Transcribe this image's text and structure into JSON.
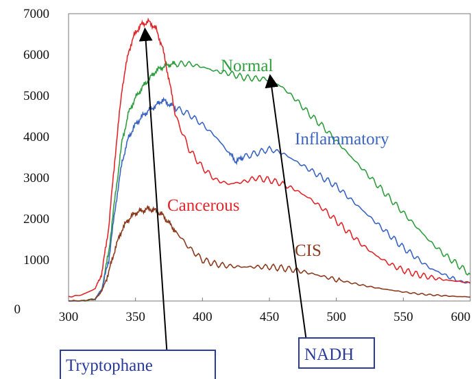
{
  "chart_data": {
    "type": "line",
    "xlim": [
      300,
      600
    ],
    "ylim": [
      0,
      7000
    ],
    "x_ticks": [
      "300",
      "350",
      "400",
      "450",
      "500",
      "550",
      "600"
    ],
    "y_ticks": [
      "0",
      "1000",
      "2000",
      "3000",
      "4000",
      "5000",
      "6000",
      "7000"
    ],
    "grid": false,
    "legend": "inline labels",
    "series": [
      {
        "name": "Normal",
        "color": "#2e9e3e",
        "x": [
          300,
          310,
          320,
          325,
          330,
          335,
          340,
          345,
          350,
          355,
          360,
          365,
          370,
          375,
          380,
          390,
          400,
          410,
          420,
          430,
          440,
          450,
          460,
          470,
          480,
          490,
          500,
          510,
          520,
          530,
          540,
          550,
          560,
          570,
          580,
          590,
          600
        ],
        "y": [
          0,
          0,
          50,
          300,
          1200,
          2600,
          3900,
          4600,
          4950,
          5200,
          5400,
          5600,
          5700,
          5760,
          5780,
          5780,
          5700,
          5600,
          5550,
          5450,
          5420,
          5400,
          5200,
          4900,
          4550,
          4250,
          3900,
          3550,
          3200,
          2850,
          2500,
          2150,
          1800,
          1450,
          1150,
          900,
          650
        ]
      },
      {
        "name": "Inflammatory",
        "color": "#3a64c2",
        "x": [
          300,
          310,
          320,
          325,
          330,
          335,
          340,
          345,
          350,
          355,
          360,
          365,
          370,
          375,
          380,
          390,
          400,
          410,
          420,
          425,
          430,
          440,
          450,
          460,
          470,
          480,
          490,
          500,
          510,
          520,
          530,
          540,
          550,
          560,
          570,
          580,
          590,
          600
        ],
        "y": [
          0,
          0,
          50,
          300,
          1000,
          2300,
          3400,
          4000,
          4300,
          4500,
          4650,
          4750,
          4900,
          4800,
          4700,
          4550,
          4300,
          4000,
          3600,
          3400,
          3500,
          3600,
          3700,
          3600,
          3400,
          3200,
          3000,
          2800,
          2500,
          2200,
          1900,
          1600,
          1300,
          1050,
          800,
          650,
          500,
          430
        ]
      },
      {
        "name": "Cancerous",
        "color": "#e0262a",
        "x": [
          300,
          310,
          320,
          325,
          330,
          335,
          340,
          345,
          350,
          355,
          360,
          365,
          370,
          375,
          380,
          390,
          400,
          410,
          420,
          430,
          440,
          450,
          460,
          470,
          480,
          490,
          500,
          510,
          520,
          530,
          540,
          550,
          560,
          570,
          580,
          590,
          600
        ],
        "y": [
          100,
          150,
          300,
          700,
          1800,
          3600,
          5200,
          6100,
          6550,
          6750,
          6800,
          6650,
          6200,
          5400,
          4500,
          3700,
          3250,
          2950,
          2850,
          2900,
          3000,
          2950,
          2850,
          2700,
          2500,
          2250,
          1950,
          1650,
          1350,
          1100,
          900,
          750,
          650,
          580,
          520,
          480,
          450
        ]
      },
      {
        "name": "CIS",
        "color": "#8b3a1e",
        "x": [
          300,
          310,
          320,
          325,
          330,
          335,
          340,
          345,
          350,
          355,
          360,
          365,
          370,
          375,
          380,
          390,
          400,
          410,
          420,
          430,
          440,
          450,
          460,
          470,
          480,
          490,
          500,
          510,
          520,
          530,
          540,
          550,
          560,
          570,
          580,
          590,
          600
        ],
        "y": [
          0,
          0,
          50,
          250,
          700,
          1300,
          1750,
          2000,
          2150,
          2200,
          2250,
          2200,
          2100,
          1900,
          1700,
          1300,
          1000,
          900,
          850,
          830,
          830,
          830,
          800,
          750,
          680,
          600,
          520,
          450,
          380,
          320,
          270,
          220,
          180,
          150,
          130,
          110,
          100
        ]
      }
    ],
    "annotations": [
      {
        "text": "Tryptophane",
        "points_to": [
          360,
          6600
        ],
        "color": "#2a3a9a"
      },
      {
        "text": "NADH",
        "points_to": [
          453,
          5250
        ],
        "color": "#2a3a9a"
      }
    ]
  }
}
